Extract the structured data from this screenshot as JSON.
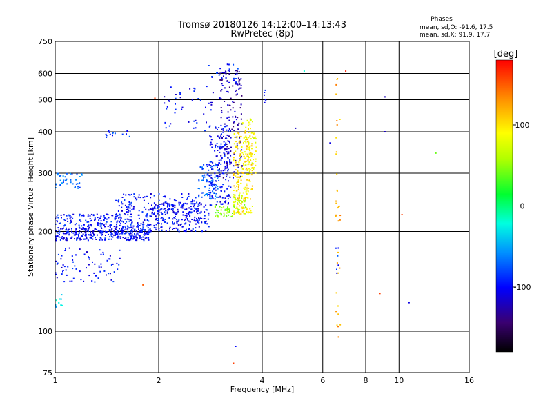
{
  "chart_data": {
    "type": "scatter",
    "title": "Tromsø 20180126 14:12:00–14:13:43",
    "subtitle": "RwPretec (8p)",
    "xlabel": "Frequency [MHz]",
    "ylabel": "Stationary phase Virtual Height [km]",
    "x_scale": "log2",
    "y_scale": "log",
    "xlim": [
      1,
      16
    ],
    "ylim": [
      75,
      750
    ],
    "x_ticks": [
      1,
      2,
      4,
      6,
      8,
      10,
      16
    ],
    "x_tick_labels": [
      "1",
      "2",
      "4",
      "6",
      "8",
      "10",
      "16"
    ],
    "y_ticks": [
      75,
      100,
      200,
      300,
      400,
      500,
      600,
      750
    ],
    "y_tick_labels": [
      "75",
      "100",
      "200",
      "300",
      "400",
      "500",
      "600",
      "750"
    ],
    "grid": true,
    "info": {
      "heading": "Phases",
      "line_o": "mean, sd,O: -91.6, 17.5",
      "line_x": "mean, sd,X:  91.9, 17.7"
    },
    "colorbar": {
      "label": "[deg]",
      "range": [
        -180,
        180
      ],
      "ticks": [
        100,
        0,
        -100
      ],
      "tick_labels": [
        "100",
        "0",
        "-100"
      ]
    },
    "traces": [
      {
        "kind": "band",
        "x_range": [
          1.0,
          1.9
        ],
        "y_range": [
          188,
          206
        ],
        "phase": -100,
        "n": 320
      },
      {
        "kind": "band",
        "x_range": [
          1.9,
          2.8
        ],
        "y_range": [
          200,
          245
        ],
        "phase": -100,
        "n": 220
      },
      {
        "kind": "band",
        "x_range": [
          2.8,
          3.25
        ],
        "y_range": [
          240,
          420
        ],
        "phase": -100,
        "n": 170
      },
      {
        "kind": "band",
        "x_range": [
          3.0,
          3.5
        ],
        "y_range": [
          290,
          620
        ],
        "phase": -125,
        "n": 150
      },
      {
        "kind": "band",
        "x_range": [
          1.0,
          1.9
        ],
        "y_range": [
          206,
          226
        ],
        "phase": -95,
        "n": 180
      },
      {
        "kind": "band",
        "x_range": [
          1.5,
          2.6
        ],
        "y_range": [
          225,
          260
        ],
        "phase": -100,
        "n": 130
      },
      {
        "kind": "band",
        "x_range": [
          2.6,
          3.0
        ],
        "y_range": [
          250,
          320
        ],
        "phase": -75,
        "n": 80
      },
      {
        "kind": "band",
        "x_range": [
          2.9,
          3.3
        ],
        "y_range": [
          220,
          240
        ],
        "phase": 50,
        "n": 40
      },
      {
        "kind": "band",
        "x_range": [
          3.3,
          3.75
        ],
        "y_range": [
          225,
          400
        ],
        "phase": 100,
        "n": 200
      },
      {
        "kind": "band",
        "x_range": [
          3.5,
          3.85
        ],
        "y_range": [
          300,
          450
        ],
        "phase": 85,
        "n": 60
      },
      {
        "kind": "band",
        "x_range": [
          3.3,
          3.6
        ],
        "y_range": [
          225,
          260
        ],
        "phase": 60,
        "n": 40
      },
      {
        "kind": "band",
        "x_range": [
          1.0,
          1.2
        ],
        "y_range": [
          270,
          300
        ],
        "phase": -70,
        "n": 40
      },
      {
        "kind": "band",
        "x_range": [
          1.0,
          1.55
        ],
        "y_range": [
          140,
          180
        ],
        "phase": -100,
        "n": 80
      },
      {
        "kind": "band",
        "x_range": [
          1.0,
          1.05
        ],
        "y_range": [
          115,
          130
        ],
        "phase": -35,
        "n": 12
      },
      {
        "kind": "band",
        "x_range": [
          2.05,
          2.9
        ],
        "y_range": [
          400,
          560
        ],
        "phase": -100,
        "n": 45
      },
      {
        "kind": "band",
        "x_range": [
          1.4,
          1.65
        ],
        "y_range": [
          385,
          405
        ],
        "phase": -90,
        "n": 15
      },
      {
        "kind": "band",
        "x_range": [
          2.8,
          3.4
        ],
        "y_range": [
          560,
          640
        ],
        "phase": -90,
        "n": 20
      },
      {
        "kind": "band",
        "x_range": [
          4.05,
          4.1
        ],
        "y_range": [
          480,
          540
        ],
        "phase": -100,
        "n": 6
      },
      {
        "kind": "column",
        "x_range": [
          6.55,
          6.75
        ],
        "y_range": [
          95,
          620
        ],
        "phase": 120,
        "n": 35
      },
      {
        "kind": "column",
        "x_range": [
          6.55,
          6.75
        ],
        "y_range": [
          140,
          180
        ],
        "phase": -90,
        "n": 6
      }
    ],
    "isolated_points": [
      {
        "x": 1.8,
        "y": 138,
        "phase": 150
      },
      {
        "x": 1.95,
        "y": 505,
        "phase": 160
      },
      {
        "x": 3.35,
        "y": 90,
        "phase": -100
      },
      {
        "x": 3.3,
        "y": 80,
        "phase": 160
      },
      {
        "x": 5.0,
        "y": 410,
        "phase": -120
      },
      {
        "x": 5.3,
        "y": 610,
        "phase": -20
      },
      {
        "x": 6.3,
        "y": 370,
        "phase": -110
      },
      {
        "x": 7.0,
        "y": 610,
        "phase": 170
      },
      {
        "x": 8.8,
        "y": 130,
        "phase": 160
      },
      {
        "x": 9.1,
        "y": 510,
        "phase": -120
      },
      {
        "x": 9.1,
        "y": 400,
        "phase": -120
      },
      {
        "x": 10.2,
        "y": 225,
        "phase": 160
      },
      {
        "x": 10.7,
        "y": 122,
        "phase": -110
      },
      {
        "x": 12.8,
        "y": 345,
        "phase": 40
      }
    ]
  }
}
